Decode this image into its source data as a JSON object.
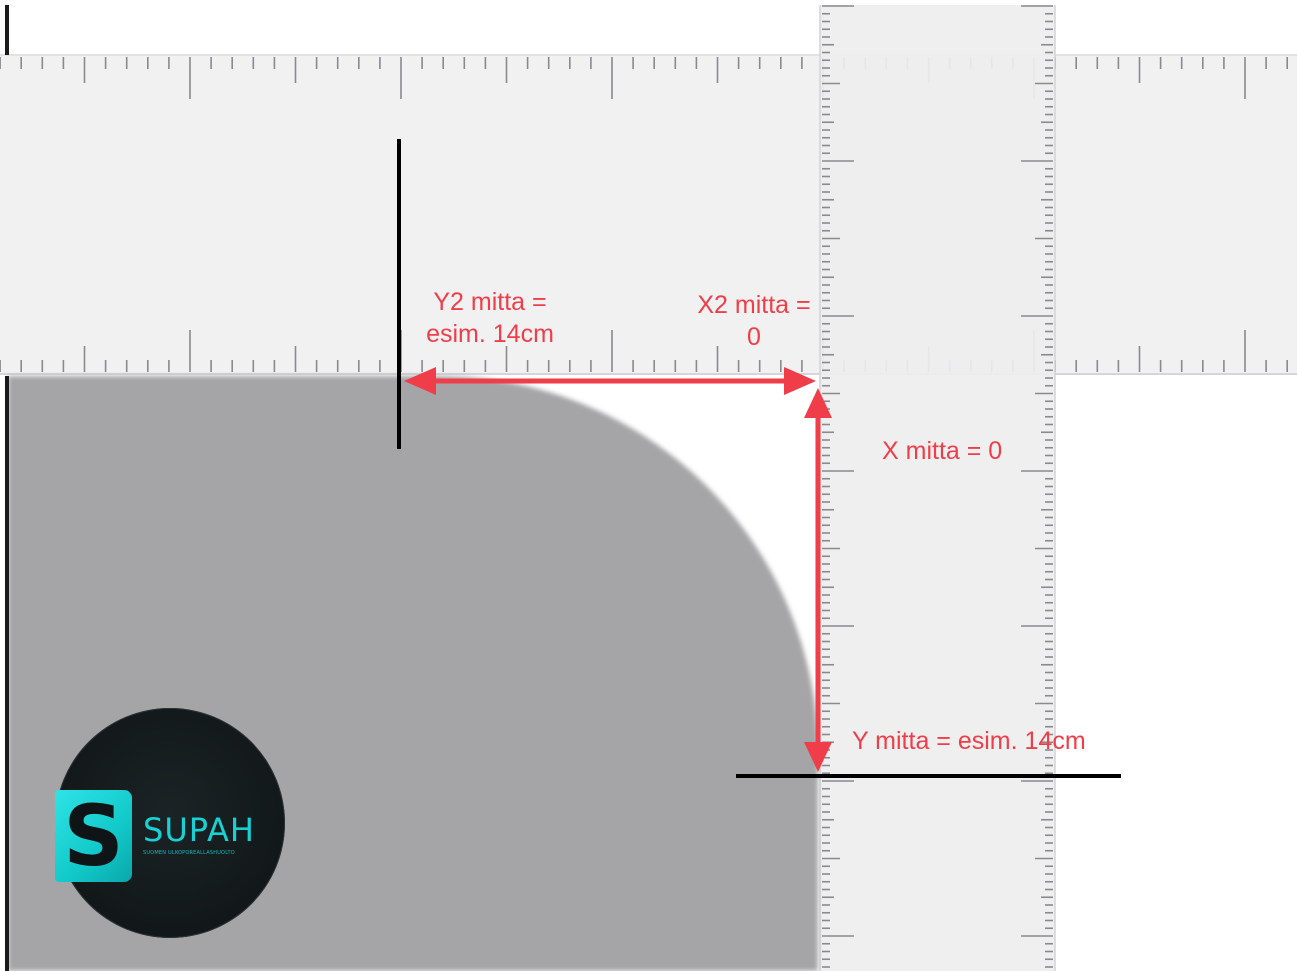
{
  "labels": {
    "y2_line1": "Y2 mitta =",
    "y2_line2": "esim. 14cm",
    "x2_line1": "X2 mitta =",
    "x2_line2": "0",
    "x_label": "X mitta = 0",
    "y_label": "Y mitta = esim. 14cm"
  },
  "logo": {
    "letter": "S",
    "wordmark": "SUPAH",
    "tagline": "SUOMEN ULKOPOREALLASHUOLTO"
  },
  "colors": {
    "accent": "#ef3e4a",
    "shape": "#a5a5a7",
    "ruler": "#f1f1f2",
    "logo_cyan": "#17d2d4"
  }
}
